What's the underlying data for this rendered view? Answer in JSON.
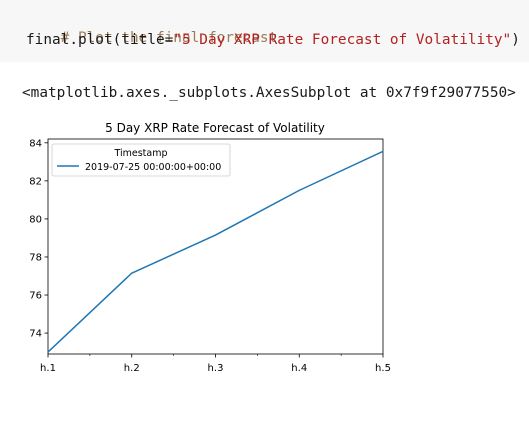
{
  "code": {
    "comment": "# Plot the final forecast",
    "line_prefix": "final.plot(title=",
    "line_string": "\"5 Day XRP Rate Forecast of Volatility\"",
    "line_suffix": ")"
  },
  "output": {
    "repr": "<matplotlib.axes._subplots.AxesSubplot at 0x7f9f29077550>"
  },
  "chart_data": {
    "type": "line",
    "title": "5 Day XRP Rate Forecast of Volatility",
    "xlabel": "",
    "ylabel": "",
    "categories": [
      "h.1",
      "h.2",
      "h.3",
      "h.4",
      "h.5"
    ],
    "x_ticks_minor": true,
    "y_ticks": [
      74,
      76,
      78,
      80,
      82,
      84
    ],
    "ylim": [
      72.9,
      84.2
    ],
    "grid": false,
    "legend": {
      "title": "Timestamp",
      "placement": "upper-left"
    },
    "series": [
      {
        "name": "2019-07-25 00:00:00+00:00",
        "color": "#1f77b4",
        "values": [
          73.0,
          77.15,
          79.15,
          81.5,
          83.55
        ]
      }
    ]
  }
}
